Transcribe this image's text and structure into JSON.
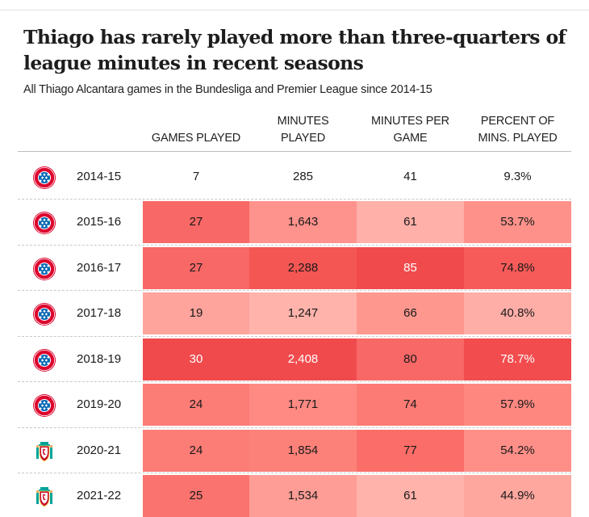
{
  "title": "Thiago has rarely played more than three-quarters of league minutes in recent seasons",
  "subtitle": "All Thiago Alcantara games in the Bundesliga and Premier League since 2014-15",
  "chart_data": {
    "type": "table",
    "title": "Thiago has rarely played more than three-quarters of league minutes in recent seasons",
    "subtitle": "All Thiago Alcantara games in the Bundesliga and Premier League since 2014-15",
    "columns": [
      {
        "key": "club",
        "label": ""
      },
      {
        "key": "season",
        "label": ""
      },
      {
        "key": "games",
        "label_lines": [
          "",
          "GAMES PLAYED"
        ]
      },
      {
        "key": "minutes",
        "label_lines": [
          "MINUTES",
          "PLAYED"
        ]
      },
      {
        "key": "mpg",
        "label_lines": [
          "MINUTES PER",
          "GAME"
        ]
      },
      {
        "key": "pct",
        "label_lines": [
          "PERCENT OF",
          "MINS. PLAYED"
        ]
      }
    ],
    "rows": [
      {
        "club": "bayern-munich",
        "season": "2014-15",
        "games": "7",
        "minutes": "285",
        "mpg": "41",
        "pct": "9.3%",
        "colors": [
          null,
          null,
          null,
          null
        ],
        "text": [
          "dark",
          "dark",
          "dark",
          "dark"
        ]
      },
      {
        "club": "bayern-munich",
        "season": "2015-16",
        "games": "27",
        "minutes": "1,643",
        "mpg": "61",
        "pct": "53.7%",
        "colors": [
          "#f86866",
          "#fe928c",
          "#feb0a9",
          "#fe928a"
        ],
        "text": [
          "dark",
          "dark",
          "dark",
          "dark"
        ]
      },
      {
        "club": "bayern-munich",
        "season": "2016-17",
        "games": "27",
        "minutes": "2,288",
        "mpg": "85",
        "pct": "74.8%",
        "colors": [
          "#f86866",
          "#f45654",
          "#f14a4c",
          "#f65b59"
        ],
        "text": [
          "dark",
          "dark",
          "light",
          "dark"
        ]
      },
      {
        "club": "bayern-munich",
        "season": "2017-18",
        "games": "19",
        "minutes": "1,247",
        "mpg": "66",
        "pct": "40.8%",
        "colors": [
          "#fea49c",
          "#ffb3ab",
          "#fe988f",
          "#ffaea7"
        ],
        "text": [
          "dark",
          "dark",
          "dark",
          "dark"
        ]
      },
      {
        "club": "bayern-munich",
        "season": "2018-19",
        "games": "30",
        "minutes": "2,408",
        "mpg": "80",
        "pct": "78.7%",
        "colors": [
          "#f04a4d",
          "#f04a4d",
          "#f86866",
          "#f24c4e"
        ],
        "text": [
          "light",
          "light",
          "dark",
          "light"
        ]
      },
      {
        "club": "bayern-munich",
        "season": "2019-20",
        "games": "24",
        "minutes": "1,771",
        "mpg": "74",
        "pct": "57.9%",
        "colors": [
          "#fc7c76",
          "#fe8a83",
          "#fc7b74",
          "#fe8780"
        ],
        "text": [
          "dark",
          "dark",
          "dark",
          "dark"
        ]
      },
      {
        "club": "liverpool",
        "season": "2020-21",
        "games": "24",
        "minutes": "1,854",
        "mpg": "77",
        "pct": "54.2%",
        "colors": [
          "#fc7c76",
          "#fc8179",
          "#fa6d68",
          "#fe8f88"
        ],
        "text": [
          "dark",
          "dark",
          "dark",
          "dark"
        ]
      },
      {
        "club": "liverpool",
        "season": "2021-22",
        "games": "25",
        "minutes": "1,534",
        "mpg": "61",
        "pct": "44.9%",
        "colors": [
          "#fa736e",
          "#fe9d95",
          "#ffb3ab",
          "#fea79f"
        ],
        "text": [
          "dark",
          "dark",
          "dark",
          "dark"
        ]
      }
    ]
  },
  "legend_colors": {
    "light_text": "#ffffff",
    "dark_text": "#1a1a1a"
  }
}
